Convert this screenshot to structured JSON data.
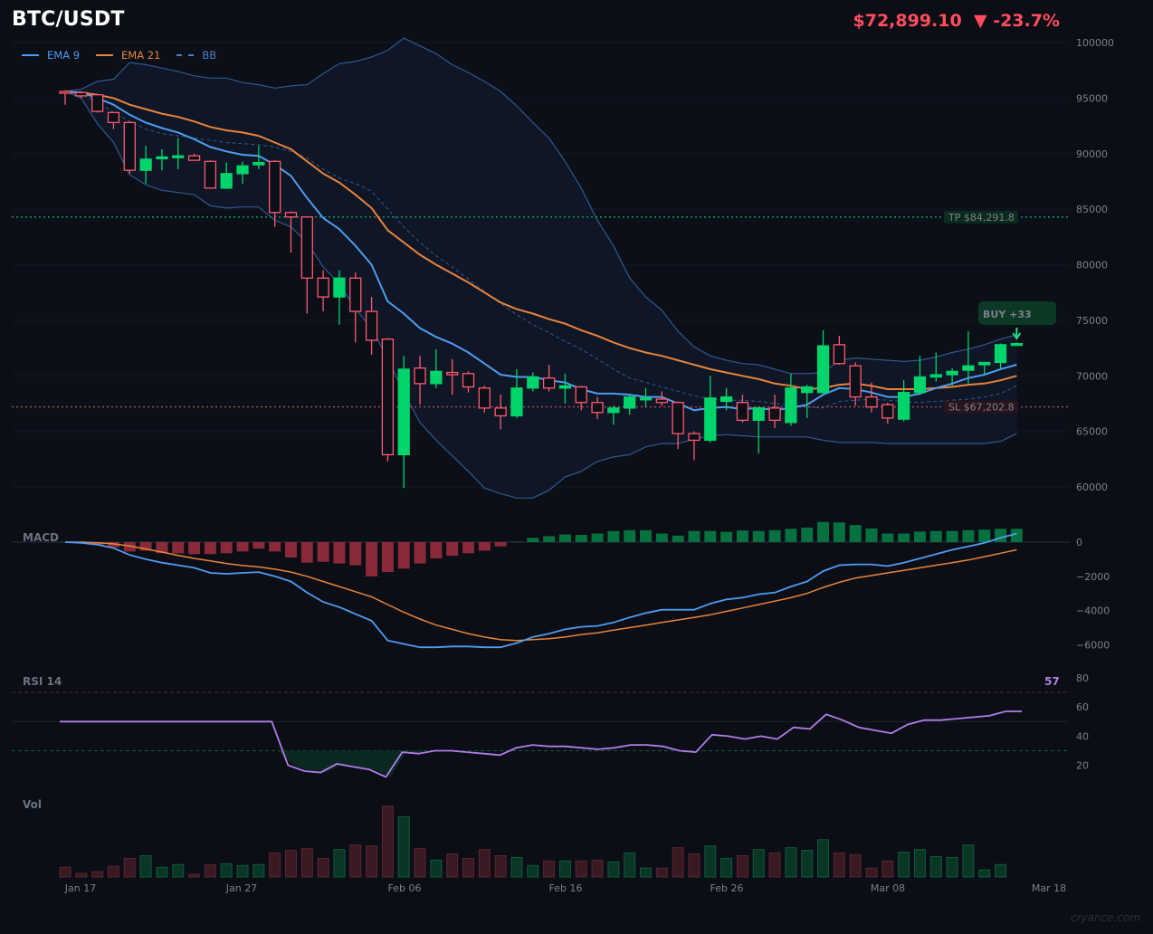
{
  "header": {
    "title": "BTC/USDT",
    "price": "$72,899.10",
    "change_arrow": "▼",
    "change": "-23.7%",
    "price_color": "#ff4d5e"
  },
  "legend": [
    {
      "label": "EMA 9",
      "color": "#4f9cf0",
      "style": "solid"
    },
    {
      "label": "EMA 21",
      "color": "#e8843a",
      "style": "solid"
    },
    {
      "label": "BB",
      "color": "#4f7ec8",
      "style": "dashed"
    }
  ],
  "annotations": {
    "tp_label": "TP $84,291.8",
    "tp_value": 84291.8,
    "sl_label": "SL $67,202.8",
    "sl_value": 67202.8,
    "signal_label": "BUY  +33"
  },
  "panels": {
    "macd_label": "MACD",
    "rsi_label": "RSI 14",
    "rsi_value": "57",
    "vol_label": "Vol"
  },
  "watermark": "cryance.com",
  "colors": {
    "up": "#00d46a",
    "down": "#ff5a6e",
    "ema9": "#4f9cf0",
    "ema21": "#e8843a",
    "bb": "#2f5a8e",
    "rsi": "#b07ee8",
    "macd_pos": "#07713f",
    "macd_neg": "#8a2a38"
  },
  "chart_data": [
    {
      "type": "candlestick",
      "title": "BTC/USDT",
      "ylim": [
        58500,
        101000
      ],
      "yticks": [
        60000,
        65000,
        70000,
        75000,
        80000,
        85000,
        90000,
        95000,
        100000
      ],
      "xticks": [
        "Jan 17",
        "Jan 27",
        "Feb 06",
        "Feb 16",
        "Feb 26",
        "Mar 08",
        "Mar 18"
      ],
      "ohlc": [
        [
          95600,
          95700,
          94400,
          95500
        ],
        [
          95500,
          95600,
          95000,
          95200
        ],
        [
          95300,
          95400,
          93700,
          93800
        ],
        [
          93700,
          93700,
          92200,
          92800
        ],
        [
          92800,
          92900,
          88200,
          88500
        ],
        [
          88500,
          90700,
          87300,
          89500
        ],
        [
          89600,
          90400,
          88500,
          89700
        ],
        [
          89700,
          91400,
          88600,
          89800
        ],
        [
          89800,
          90000,
          89400,
          89400
        ],
        [
          89300,
          89400,
          86900,
          86900
        ],
        [
          86900,
          89200,
          86800,
          88200
        ],
        [
          88200,
          89300,
          87300,
          88900
        ],
        [
          89000,
          90700,
          88600,
          89200
        ],
        [
          89300,
          89400,
          83400,
          84700
        ],
        [
          84700,
          84800,
          81100,
          84300
        ],
        [
          84300,
          84300,
          75600,
          78800
        ],
        [
          78800,
          79500,
          75800,
          77100
        ],
        [
          77100,
          79500,
          74600,
          78800
        ],
        [
          78800,
          79300,
          73000,
          75800
        ],
        [
          75800,
          77100,
          71900,
          73200
        ],
        [
          73300,
          73400,
          62300,
          62900
        ],
        [
          62900,
          71800,
          59900,
          70600
        ],
        [
          70700,
          71800,
          67400,
          69300
        ],
        [
          69300,
          72400,
          68900,
          70400
        ],
        [
          70300,
          71500,
          68300,
          70100
        ],
        [
          70200,
          70400,
          68500,
          69000
        ],
        [
          68900,
          69100,
          66700,
          67100
        ],
        [
          67100,
          68300,
          65200,
          66400
        ],
        [
          66400,
          70600,
          66200,
          68900
        ],
        [
          68900,
          70300,
          68600,
          69900
        ],
        [
          69800,
          71000,
          68600,
          68900
        ],
        [
          68900,
          70200,
          67500,
          69100
        ],
        [
          69000,
          69100,
          66900,
          67600
        ],
        [
          67600,
          68100,
          66100,
          66700
        ],
        [
          66700,
          67300,
          65600,
          67100
        ],
        [
          67100,
          68300,
          66500,
          68100
        ],
        [
          68000,
          68900,
          67200,
          68000
        ],
        [
          67900,
          68600,
          67300,
          67600
        ],
        [
          67600,
          67700,
          63400,
          64800
        ],
        [
          64800,
          65000,
          62400,
          64200
        ],
        [
          64200,
          70000,
          64000,
          68000
        ],
        [
          67700,
          68900,
          66900,
          68100
        ],
        [
          67600,
          68300,
          65800,
          66000
        ],
        [
          66000,
          67100,
          63000,
          67100
        ],
        [
          67100,
          68300,
          65300,
          66000
        ],
        [
          65800,
          70200,
          65500,
          68900
        ],
        [
          68500,
          69200,
          66200,
          69000
        ],
        [
          68500,
          74100,
          68300,
          72700
        ],
        [
          72800,
          73600,
          71000,
          71100
        ],
        [
          70900,
          71200,
          67300,
          68100
        ],
        [
          68100,
          69400,
          66700,
          67200
        ],
        [
          67400,
          67600,
          65700,
          66200
        ],
        [
          66100,
          69600,
          65900,
          68500
        ],
        [
          68500,
          71800,
          68300,
          69900
        ],
        [
          69900,
          72100,
          69500,
          70100
        ],
        [
          70100,
          70700,
          69100,
          70400
        ],
        [
          70500,
          74000,
          69300,
          70900
        ],
        [
          71000,
          71200,
          70100,
          71200
        ],
        [
          71200,
          72900,
          70600,
          72800
        ],
        [
          72900,
          73000,
          72800,
          72900
        ]
      ],
      "ema9": [
        95600,
        95500,
        95000,
        94400,
        93500,
        92800,
        92300,
        91900,
        91300,
        90600,
        90200,
        89900,
        89800,
        89000,
        88000,
        86000,
        84200,
        83200,
        81700,
        80000,
        76700,
        75600,
        74300,
        73500,
        72900,
        72100,
        71100,
        70100,
        69900,
        69900,
        69600,
        69400,
        68800,
        68400,
        68400,
        68300,
        68100,
        68100,
        67500,
        66900,
        67100,
        67200,
        67000,
        67100,
        66900,
        67100,
        67400,
        68300,
        68900,
        68800,
        68500,
        68100,
        68100,
        68400,
        68900,
        69300,
        69800,
        70100,
        70600,
        71000
      ],
      "ema21": [
        95500,
        95500,
        95300,
        95000,
        94400,
        94000,
        93600,
        93300,
        92900,
        92400,
        92100,
        91900,
        91600,
        91000,
        90400,
        89300,
        88200,
        87400,
        86300,
        85100,
        83100,
        82000,
        80900,
        80000,
        79200,
        78400,
        77500,
        76600,
        76000,
        75600,
        75100,
        74700,
        74100,
        73600,
        73000,
        72500,
        72100,
        71800,
        71400,
        71000,
        70600,
        70300,
        70000,
        69700,
        69300,
        69100,
        68800,
        68900,
        69200,
        69300,
        69100,
        68800,
        68800,
        68800,
        68900,
        69000,
        69200,
        69300,
        69600,
        70000
      ],
      "bb_upper": [
        95600,
        95800,
        96500,
        96700,
        98200,
        98000,
        97700,
        97400,
        97000,
        96800,
        96800,
        96400,
        96200,
        95900,
        96100,
        96200,
        97200,
        98100,
        98300,
        98700,
        99300,
        100400,
        99700,
        99000,
        98000,
        97300,
        96500,
        95600,
        94300,
        92800,
        91400,
        89300,
        86900,
        84000,
        81700,
        78800,
        77100,
        75900,
        74000,
        72600,
        71800,
        71400,
        71100,
        71000,
        70600,
        70200,
        70200,
        70300,
        71400,
        71600,
        71500,
        71400,
        71300,
        71400,
        71700,
        72100,
        72400,
        72800,
        73300,
        73700
      ],
      "bb_mid": [
        95600,
        95400,
        94600,
        93700,
        92900,
        92200,
        91800,
        91600,
        91400,
        91200,
        91000,
        90900,
        90800,
        90600,
        90200,
        89600,
        88600,
        87800,
        87300,
        86600,
        85000,
        83400,
        82000,
        80800,
        79800,
        78700,
        77600,
        76500,
        75500,
        74600,
        73900,
        73100,
        72400,
        71500,
        70600,
        69800,
        69400,
        69000,
        68600,
        68200,
        67900,
        67800,
        67800,
        67700,
        67500,
        67400,
        67200,
        67100,
        67700,
        67800,
        67900,
        67800,
        67700,
        67600,
        67700,
        67800,
        67900,
        68100,
        68400,
        69100
      ],
      "bb_lower": [
        95600,
        95000,
        92700,
        91000,
        88100,
        87200,
        86700,
        86500,
        86300,
        85300,
        85100,
        85200,
        85200,
        84000,
        83400,
        82000,
        79800,
        78300,
        76000,
        74300,
        71500,
        68500,
        65800,
        64200,
        62800,
        61400,
        59900,
        59400,
        59000,
        59000,
        59700,
        60900,
        61400,
        62300,
        62700,
        62900,
        63600,
        63900,
        63900,
        64300,
        64600,
        64700,
        64600,
        64500,
        64500,
        64500,
        64500,
        64200,
        64000,
        64000,
        64000,
        63900,
        63900,
        63900,
        63900,
        63900,
        63900,
        63900,
        64100,
        64800
      ]
    },
    {
      "type": "bar+line",
      "title": "MACD",
      "ylim": [
        -6800,
        800
      ],
      "yticks": [
        0,
        -2000,
        -4000,
        -6000
      ],
      "histogram": [
        0,
        -50,
        -150,
        -300,
        -550,
        -500,
        -650,
        -650,
        -700,
        -700,
        -650,
        -550,
        -380,
        -550,
        -900,
        -1200,
        -1150,
        -1250,
        -1350,
        -2000,
        -1750,
        -1550,
        -1250,
        -950,
        -800,
        -650,
        -500,
        -250,
        30,
        250,
        350,
        450,
        420,
        500,
        650,
        700,
        700,
        500,
        380,
        650,
        650,
        600,
        680,
        650,
        700,
        780,
        850,
        1180,
        1150,
        1000,
        800,
        500,
        500,
        620,
        650,
        650,
        700,
        730,
        780,
        780
      ],
      "macd": [
        0,
        -40,
        -150,
        -350,
        -750,
        -1000,
        -1200,
        -1350,
        -1500,
        -1800,
        -1850,
        -1800,
        -1750,
        -2000,
        -2300,
        -2950,
        -3500,
        -3800,
        -4200,
        -4600,
        -5750,
        -5950,
        -6150,
        -6150,
        -6100,
        -6100,
        -6150,
        -6150,
        -5900,
        -5550,
        -5350,
        -5100,
        -4950,
        -4900,
        -4700,
        -4400,
        -4150,
        -3950,
        -3950,
        -3950,
        -3600,
        -3350,
        -3250,
        -3050,
        -2950,
        -2600,
        -2300,
        -1700,
        -1350,
        -1300,
        -1300,
        -1400,
        -1200,
        -950,
        -700,
        -450,
        -250,
        -50,
        250,
        500
      ],
      "signal": [
        0,
        0,
        -40,
        -100,
        -230,
        -400,
        -580,
        -770,
        -950,
        -1100,
        -1250,
        -1370,
        -1450,
        -1580,
        -1750,
        -2000,
        -2300,
        -2600,
        -2900,
        -3200,
        -3650,
        -4100,
        -4500,
        -4850,
        -5100,
        -5350,
        -5550,
        -5700,
        -5750,
        -5700,
        -5650,
        -5550,
        -5400,
        -5300,
        -5150,
        -5000,
        -4850,
        -4700,
        -4550,
        -4400,
        -4250,
        -4050,
        -3850,
        -3650,
        -3450,
        -3250,
        -3000,
        -2650,
        -2350,
        -2100,
        -1950,
        -1800,
        -1650,
        -1500,
        -1350,
        -1200,
        -1050,
        -850,
        -650,
        -450
      ]
    },
    {
      "type": "line",
      "title": "RSI 14",
      "ylim": [
        10,
        85
      ],
      "yticks": [
        20,
        40,
        60,
        80
      ],
      "overbought": 70,
      "oversold": 30,
      "midline": 50,
      "values": [
        50,
        50,
        50,
        50,
        50,
        50,
        50,
        50,
        50,
        50,
        50,
        50,
        50,
        50,
        20,
        16,
        15,
        21,
        19,
        17,
        12,
        29,
        28,
        30,
        30,
        29,
        28,
        27,
        32,
        34,
        33,
        33,
        32,
        31,
        32,
        34,
        34,
        33,
        30,
        29,
        41,
        40,
        38,
        40,
        38,
        46,
        45,
        55,
        51,
        46,
        44,
        42,
        48,
        51,
        51,
        52,
        53,
        54,
        57,
        57
      ]
    },
    {
      "type": "bar",
      "title": "Vol",
      "values": [
        11,
        4,
        6,
        12,
        21,
        24,
        11,
        14,
        3,
        14,
        15,
        13,
        14,
        27,
        30,
        32,
        21,
        31,
        36,
        35,
        80,
        68,
        32,
        19,
        26,
        21,
        31,
        24,
        22,
        13,
        18,
        18,
        18,
        19,
        17,
        27,
        10,
        10,
        33,
        26,
        35,
        21,
        24,
        31,
        27,
        33,
        30,
        42,
        27,
        25,
        10,
        18,
        28,
        31,
        23,
        22,
        36,
        8,
        14,
        0
      ]
    }
  ]
}
